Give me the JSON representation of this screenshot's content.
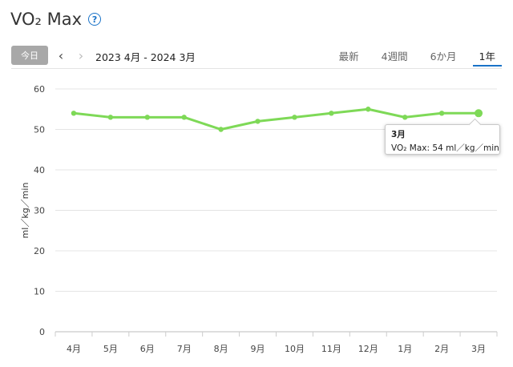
{
  "page": {
    "title": "VO₂ Max",
    "help_icon": "?"
  },
  "toolbar": {
    "today_label": "今日",
    "prev_icon": "‹",
    "next_icon": "›",
    "date_range": "2023 4月 - 2024 3月",
    "tabs": [
      {
        "label": "最新",
        "active": false
      },
      {
        "label": "4週間",
        "active": false
      },
      {
        "label": "6か月",
        "active": false
      },
      {
        "label": "1年",
        "active": true
      }
    ]
  },
  "tooltip": {
    "title": "3月",
    "value": "VO₂ Max: 54 ml／kg／min"
  },
  "colors": {
    "series": "#7ed957",
    "accent": "#1a73c8",
    "grid": "#e4e4e4"
  },
  "chart_data": {
    "type": "line",
    "categories": [
      "4月",
      "5月",
      "6月",
      "7月",
      "8月",
      "9月",
      "10月",
      "11月",
      "12月",
      "1月",
      "2月",
      "3月"
    ],
    "series": [
      {
        "values": [
          54,
          53,
          53,
          53,
          50,
          52,
          53,
          54,
          55,
          53,
          54,
          54
        ]
      }
    ],
    "ylabel": "ml／kg／min",
    "ylim": [
      0,
      60
    ],
    "yticks": [
      0,
      10,
      20,
      30,
      40,
      50,
      60
    ],
    "grid": true,
    "highlighted_point": "3月"
  }
}
